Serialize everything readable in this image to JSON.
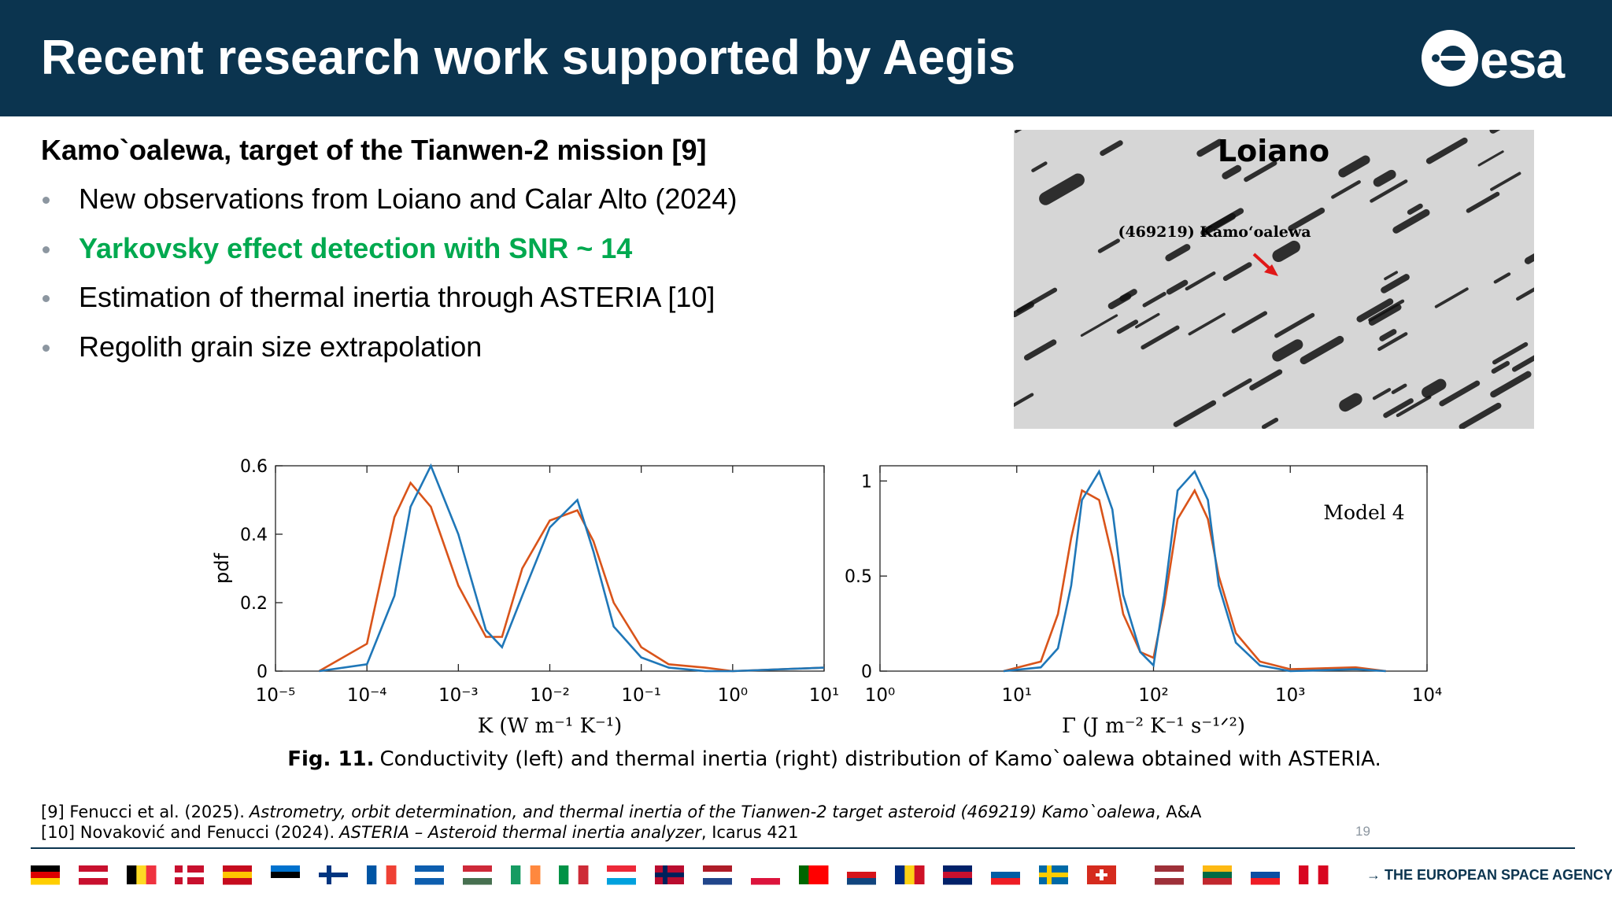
{
  "header": {
    "title": "Recent research work supported by Aegis",
    "logo": "esa"
  },
  "content": {
    "subtitle": "Kamo`oalewa, target of the Tianwen-2 mission [9]",
    "bullets": [
      {
        "text": "New observations from Loiano and Calar Alto (2024)",
        "color": "#000000"
      },
      {
        "text": "Yarkovsky effect detection with SNR ~ 14",
        "color": "#00a94f"
      },
      {
        "text": "Estimation of thermal inertia through ASTERIA [10]",
        "color": "#000000"
      },
      {
        "text": "Regolith grain size extrapolation",
        "color": "#000000"
      }
    ]
  },
  "image": {
    "label": "Loiano",
    "annotation": "(469219) Kamo‘oalewa"
  },
  "chart_data": [
    {
      "type": "line",
      "xlabel": "K (W m⁻¹ K⁻¹)",
      "ylabel": "pdf",
      "log_x": true,
      "x": [
        3e-05,
        0.0001,
        0.0002,
        0.0003,
        0.0005,
        0.001,
        0.002,
        0.003,
        0.005,
        0.01,
        0.02,
        0.03,
        0.05,
        0.1,
        0.2,
        0.5,
        1,
        10
      ],
      "series": [
        {
          "color": "#d9541a",
          "values": [
            0,
            0.08,
            0.45,
            0.55,
            0.48,
            0.25,
            0.1,
            0.1,
            0.3,
            0.44,
            0.47,
            0.38,
            0.2,
            0.07,
            0.02,
            0.01,
            0,
            0.01
          ]
        },
        {
          "color": "#1f77b8",
          "values": [
            0,
            0.02,
            0.22,
            0.48,
            0.6,
            0.4,
            0.12,
            0.07,
            0.22,
            0.42,
            0.5,
            0.35,
            0.13,
            0.04,
            0.01,
            0,
            0,
            0.01
          ]
        }
      ],
      "xlim": [
        1e-05,
        10
      ],
      "xticks": [
        {
          "value": 1e-05,
          "label": "10⁻⁵"
        },
        {
          "value": 0.0001,
          "label": "10⁻⁴"
        },
        {
          "value": 0.001,
          "label": "10⁻³"
        },
        {
          "value": 0.01,
          "label": "10⁻²"
        },
        {
          "value": 0.1,
          "label": "10⁻¹"
        },
        {
          "value": 1,
          "label": "10⁰"
        },
        {
          "value": 10,
          "label": "10¹"
        }
      ],
      "ylim": [
        0,
        0.6
      ],
      "yticks": [
        0,
        0.2,
        0.4,
        0.6
      ]
    },
    {
      "type": "line",
      "xlabel": "Γ (J m⁻² K⁻¹ s⁻¹ᐟ²)",
      "annotation": "Model 4",
      "log_x": true,
      "x": [
        8,
        15,
        20,
        25,
        30,
        40,
        50,
        60,
        80,
        100,
        120,
        150,
        200,
        250,
        300,
        400,
        600,
        1000,
        3000,
        5000
      ],
      "series": [
        {
          "color": "#d9541a",
          "values": [
            0,
            0.05,
            0.3,
            0.7,
            0.95,
            0.9,
            0.6,
            0.3,
            0.1,
            0.07,
            0.35,
            0.8,
            0.95,
            0.8,
            0.5,
            0.2,
            0.05,
            0.01,
            0.02,
            0
          ]
        },
        {
          "color": "#1f77b8",
          "values": [
            0,
            0.02,
            0.12,
            0.45,
            0.9,
            1.05,
            0.85,
            0.4,
            0.1,
            0.03,
            0.4,
            0.95,
            1.05,
            0.9,
            0.45,
            0.15,
            0.03,
            0,
            0.01,
            0
          ]
        }
      ],
      "xlim": [
        1,
        10000
      ],
      "xticks": [
        {
          "value": 1,
          "label": "10⁰"
        },
        {
          "value": 10,
          "label": "10¹"
        },
        {
          "value": 100,
          "label": "10²"
        },
        {
          "value": 1000,
          "label": "10³"
        },
        {
          "value": 10000,
          "label": "10⁴"
        }
      ],
      "ylim": [
        0,
        1.08
      ],
      "yticks": [
        0,
        0.5,
        1
      ]
    }
  ],
  "caption": {
    "label": "Fig. 11.",
    "text": "Conductivity (left) and thermal inertia (right) distribution of Kamo`oalewa obtained with ASTERIA."
  },
  "references": [
    {
      "lead": "[9] Fenucci et al. (2025).",
      "title": "Astrometry, orbit determination, and thermal inertia of the Tianwen-2 target asteroid (469219) Kamo`oalewa",
      "tail": ", A&A"
    },
    {
      "lead": "[10] Novaković and Fenucci (2024).",
      "title": "ASTERIA – Asteroid thermal inertia analyzer",
      "tail": ", Icarus 421"
    }
  ],
  "page_number": 19,
  "footer": {
    "agency": "→ THE EUROPEAN SPACE AGENCY"
  }
}
